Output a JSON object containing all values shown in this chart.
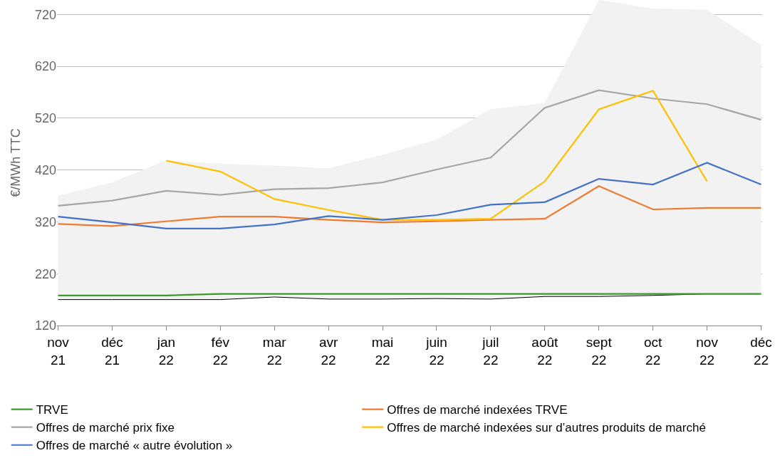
{
  "chart_data": {
    "type": "line",
    "ylabel": "€/MWh TTC",
    "categories": [
      "nov\n21",
      "déc\n21",
      "jan\n22",
      "fév\n22",
      "mar\n22",
      "avr\n22",
      "mai\n22",
      "juin\n22",
      "juil\n22",
      "août\n22",
      "sept\n22",
      "oct\n22",
      "nov\n22",
      "déc\n22"
    ],
    "series": [
      {
        "type": "area",
        "color": "#000000",
        "values": [
          170,
          170,
          170,
          170,
          175,
          171,
          171,
          172,
          171,
          176,
          176,
          178,
          181,
          181
        ]
      },
      {
        "type": "area",
        "color": "#f2f2f2",
        "values": [
          370,
          396,
          438,
          432,
          428,
          423,
          449,
          478,
          537,
          549,
          748,
          731,
          729,
          661
        ]
      },
      {
        "name": "TRVE",
        "color": "#3a9a2a",
        "values": [
          178,
          178,
          178,
          181,
          181,
          181,
          181,
          181,
          181,
          181,
          181,
          181,
          181,
          181
        ]
      },
      {
        "name": "Offres de marché indexées TRVE",
        "color": "#f07a30",
        "values": [
          316,
          312,
          321,
          330,
          330,
          324,
          319,
          321,
          324,
          326,
          389,
          344,
          347,
          347
        ]
      },
      {
        "name": "Offres de marché prix fixe",
        "color": "#a6a6a6",
        "values": [
          351,
          361,
          380,
          372,
          383,
          385,
          396,
          421,
          444,
          540,
          574,
          558,
          547,
          517
        ]
      },
      {
        "name": "Offres de marché indexées sur d’autres produits de marché",
        "color": "#ffc000",
        "values": [
          null,
          null,
          438,
          417,
          364,
          343,
          324,
          324,
          326,
          398,
          537,
          573,
          398,
          null
        ]
      },
      {
        "name": "Offres de marché « autre évolution »",
        "color": "#4472c4",
        "values": [
          330,
          319,
          307,
          307,
          315,
          331,
          324,
          333,
          353,
          358,
          403,
          392,
          434,
          392
        ]
      }
    ],
    "ylim": [
      120,
      748
    ],
    "yticks": [
      120,
      220,
      320,
      420,
      520,
      620,
      720
    ],
    "grid": "y",
    "legend": "bottom"
  }
}
